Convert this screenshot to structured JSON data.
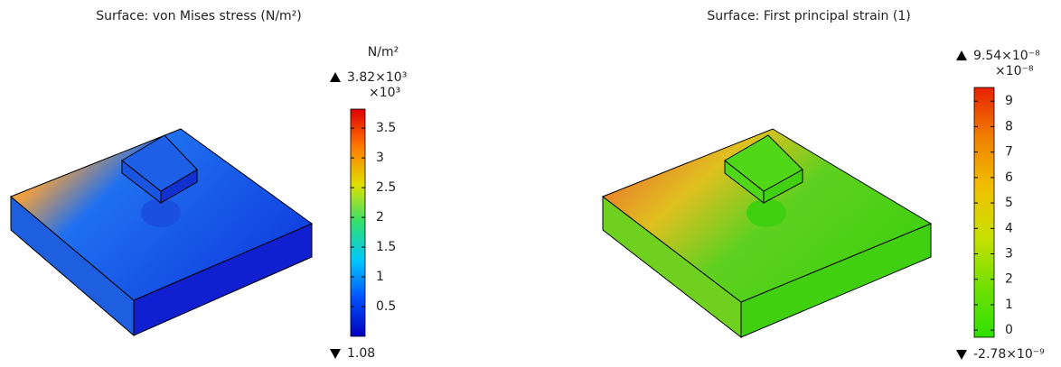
{
  "chart_data": [
    {
      "type": "surface",
      "title": "Surface: von Mises stress (N/m²)",
      "unit": "N/m²",
      "multiplier": "×10³",
      "colormap": [
        "#0000bf",
        "#0050ff",
        "#00c8ff",
        "#30e070",
        "#e0e000",
        "#ff7a00",
        "#e00000"
      ],
      "max": {
        "value": 3.82,
        "label": "3.82×10³"
      },
      "min": {
        "value": 0.00108,
        "label": "1.08"
      },
      "clim": [
        0.00108,
        3.82
      ],
      "ticks": [
        0.5,
        1,
        1.5,
        2,
        2.5,
        3,
        3.5
      ]
    },
    {
      "type": "surface",
      "title": "Surface: First principal strain (1)",
      "multiplier": "×10⁻⁸",
      "colormap": [
        "#30e000",
        "#70e000",
        "#c8e000",
        "#f0c000",
        "#f08000",
        "#e82000"
      ],
      "max": {
        "value": 9.54,
        "label": "9.54×10⁻⁸"
      },
      "min": {
        "value": -0.278,
        "label": "-2.78×10⁻⁹"
      },
      "clim": [
        -0.278,
        9.54
      ],
      "ticks": [
        0,
        1,
        2,
        3,
        4,
        5,
        6,
        7,
        8,
        9
      ]
    }
  ]
}
